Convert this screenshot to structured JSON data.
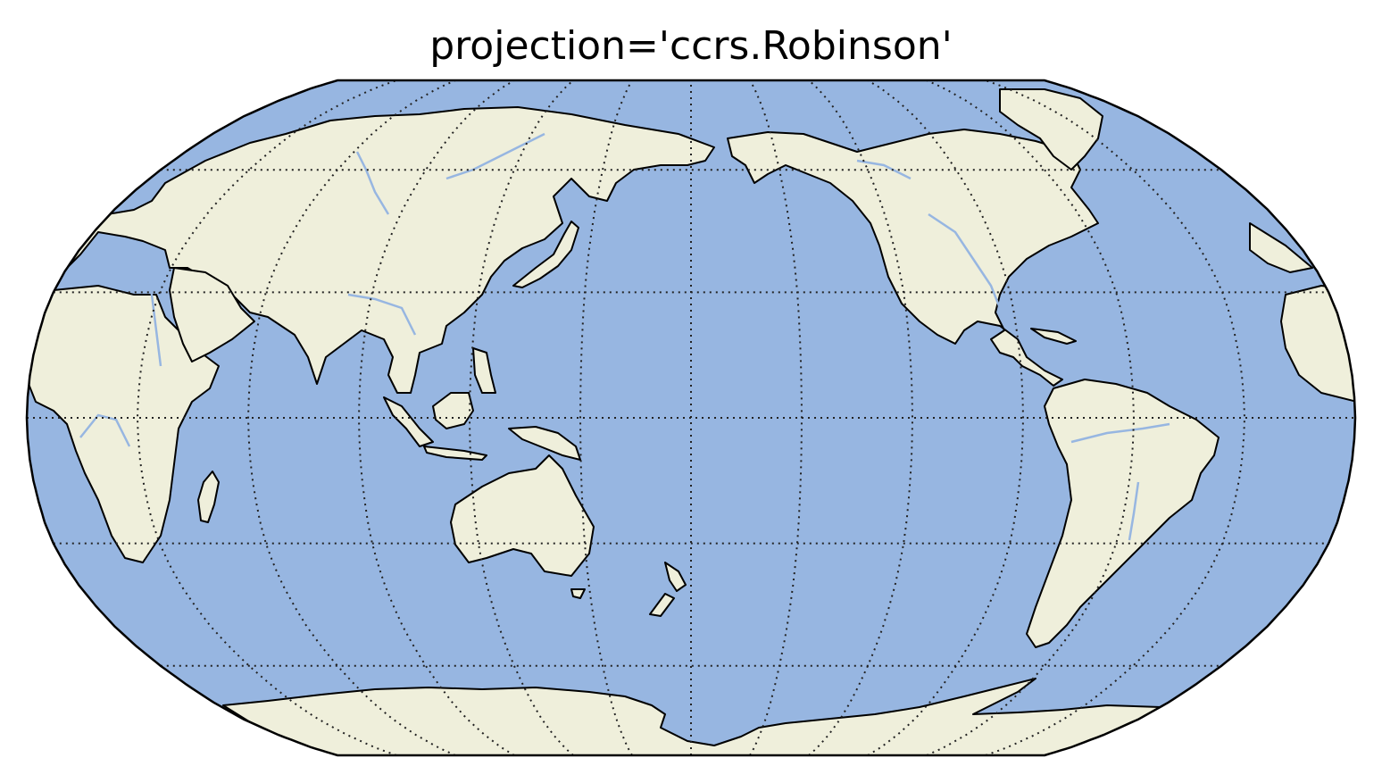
{
  "title": "projection='ccrs.Robinson'",
  "map": {
    "projection": "Robinson",
    "central_longitude": 180,
    "gridlines": {
      "style": "dotted",
      "meridian_step_deg": 30,
      "parallel_step_deg": 30,
      "color": "#222222"
    },
    "colors": {
      "ocean": "#97b6e1",
      "land": "#efefdb",
      "coastline": "#000000",
      "rivers": "#97b6e1",
      "frame": "#000000"
    },
    "features": [
      "ocean",
      "land",
      "coastline",
      "rivers",
      "gridlines"
    ]
  }
}
